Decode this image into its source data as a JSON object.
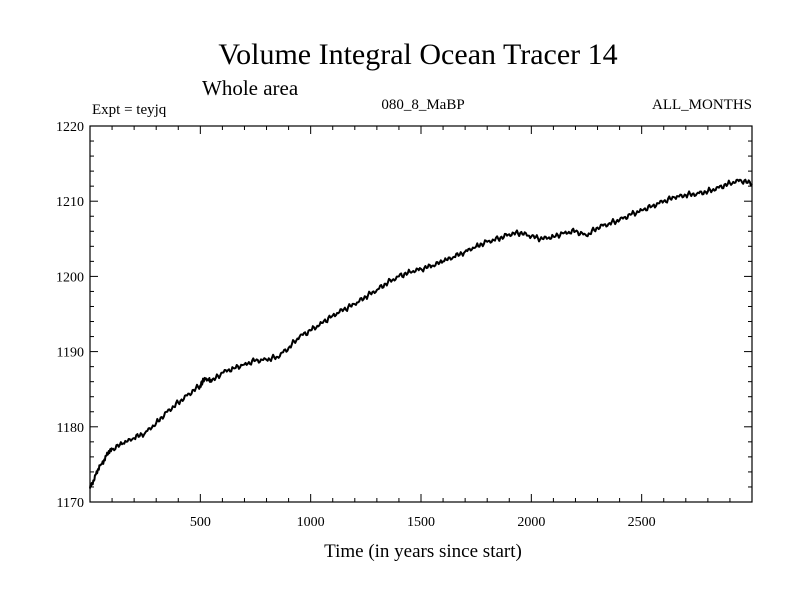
{
  "chart_data": {
    "type": "line",
    "title": "Volume Integral Ocean Tracer 14",
    "subtitle": "Whole area",
    "annotations": {
      "left": "Expt = teyjq",
      "center": "080_8_MaBP",
      "right": "ALL_MONTHS"
    },
    "xlabel": "Time (in years since start)",
    "ylabel": "",
    "xlim": [
      0,
      3000
    ],
    "ylim": [
      1170,
      1220
    ],
    "xticks": [
      500,
      1000,
      1500,
      2000,
      2500
    ],
    "yticks": [
      1170,
      1180,
      1190,
      1200,
      1210,
      1220
    ],
    "grid": false,
    "series": [
      {
        "color": "#000000",
        "x": [
          0,
          25,
          50,
          75,
          100,
          150,
          200,
          250,
          300,
          350,
          400,
          450,
          500,
          520,
          550,
          600,
          650,
          700,
          750,
          800,
          850,
          900,
          950,
          1000,
          1050,
          1100,
          1150,
          1200,
          1250,
          1300,
          1350,
          1400,
          1450,
          1500,
          1550,
          1600,
          1650,
          1700,
          1750,
          1800,
          1850,
          1900,
          1950,
          2000,
          2050,
          2100,
          2150,
          2200,
          2250,
          2300,
          2350,
          2400,
          2450,
          2500,
          2550,
          2600,
          2650,
          2700,
          2750,
          2800,
          2850,
          2900,
          2950,
          3000
        ],
        "y": [
          1171.8,
          1173.6,
          1175.0,
          1176.2,
          1177.0,
          1177.8,
          1178.5,
          1179.2,
          1180.5,
          1182.0,
          1183.2,
          1184.4,
          1185.5,
          1186.5,
          1186.0,
          1187.2,
          1187.8,
          1188.3,
          1188.8,
          1188.9,
          1189.3,
          1190.5,
          1192.0,
          1192.8,
          1193.8,
          1194.8,
          1195.6,
          1196.3,
          1197.3,
          1198.2,
          1199.2,
          1200.0,
          1200.6,
          1201.0,
          1201.4,
          1202.0,
          1202.6,
          1203.3,
          1204.0,
          1204.6,
          1205.0,
          1205.6,
          1205.8,
          1205.3,
          1205.0,
          1205.3,
          1205.8,
          1206.0,
          1205.4,
          1206.5,
          1207.0,
          1207.5,
          1208.2,
          1208.8,
          1209.4,
          1210.0,
          1210.5,
          1210.8,
          1211.0,
          1211.3,
          1211.8,
          1212.4,
          1212.8,
          1212.3
        ]
      }
    ]
  }
}
